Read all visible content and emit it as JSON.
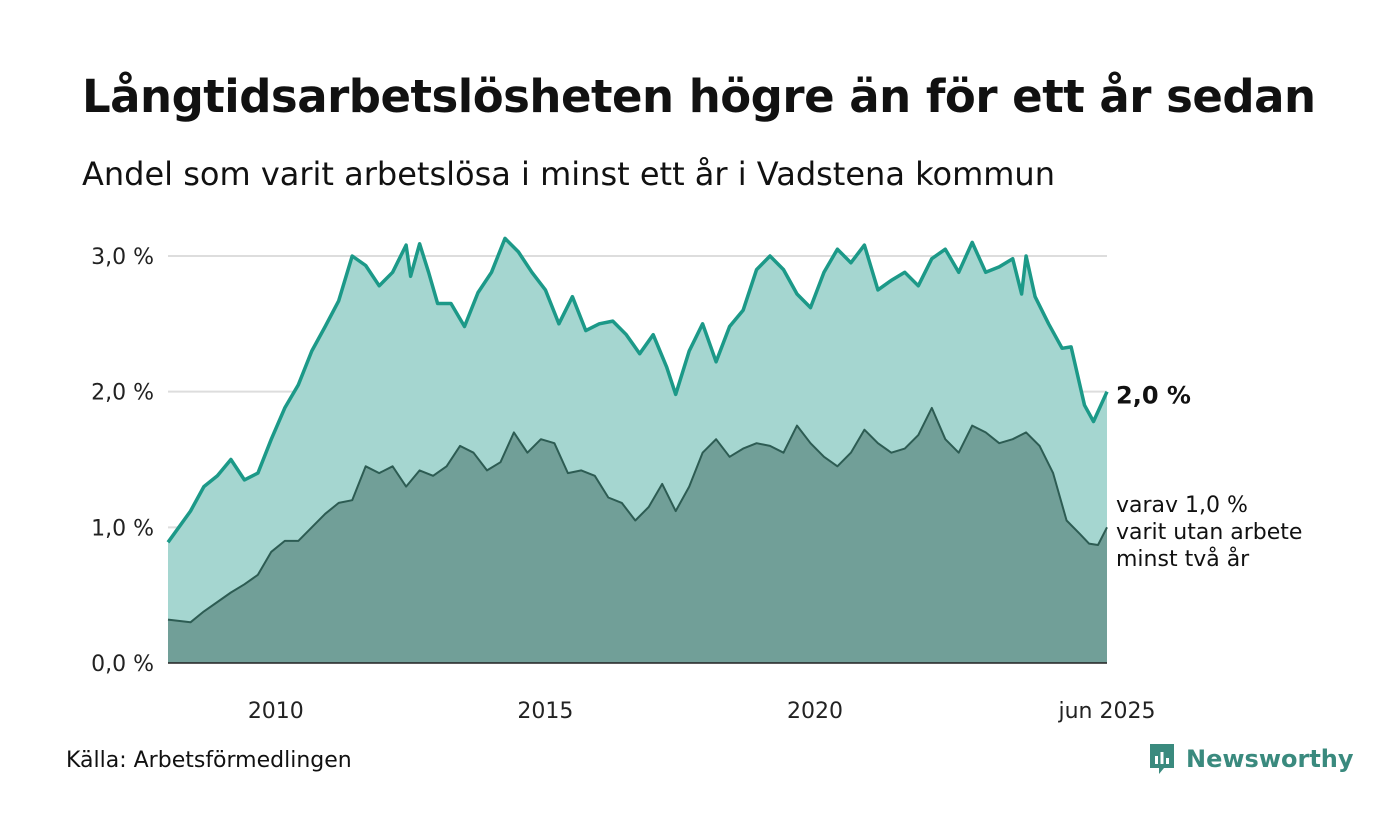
{
  "header": {
    "title": "Långtidsarbetslösheten högre än för ett år sedan",
    "subtitle": "Andel som varit arbetslösa i minst ett år i Vadstena kommun"
  },
  "footer": {
    "source": "Källa: Arbetsförmedlingen",
    "logo_text": "Newsworthy"
  },
  "colors": {
    "series_total_line": "#1c9988",
    "series_total_fill": "#a5d6d0",
    "series_long_line": "#2d5c53",
    "series_long_fill": "#719f98",
    "grid": "#dddddd",
    "logo": "#3a8a7e"
  },
  "chart_data": {
    "type": "area",
    "x_start": "2008-01",
    "x_end": "2025-06",
    "x_tick_labels": [
      "2010",
      "2015",
      "2020",
      "jun 2025"
    ],
    "y_tick_labels": [
      "0,0 %",
      "1,0 %",
      "2,0 %",
      "3,0 %"
    ],
    "ylim": [
      0,
      3.0
    ],
    "grid": true,
    "annotations": {
      "total_last": "2,0 %",
      "long_last": [
        "varav 1,0 %",
        "varit utan arbete",
        "minst två år"
      ]
    },
    "series": [
      {
        "key": "total",
        "anchors": [
          [
            "2008-01",
            0.89
          ],
          [
            "2008-06",
            1.12
          ],
          [
            "2008-09",
            1.3
          ],
          [
            "2008-12",
            1.38
          ],
          [
            "2009-03",
            1.5
          ],
          [
            "2009-06",
            1.35
          ],
          [
            "2009-09",
            1.4
          ],
          [
            "2009-12",
            1.65
          ],
          [
            "2010-03",
            1.88
          ],
          [
            "2010-06",
            2.05
          ],
          [
            "2010-09",
            2.3
          ],
          [
            "2010-12",
            2.48
          ],
          [
            "2011-03",
            2.67
          ],
          [
            "2011-06",
            3.0
          ],
          [
            "2011-09",
            2.93
          ],
          [
            "2011-12",
            2.78
          ],
          [
            "2012-03",
            2.88
          ],
          [
            "2012-06",
            3.08
          ],
          [
            "2012-07",
            2.85
          ],
          [
            "2012-09",
            3.09
          ],
          [
            "2012-11",
            2.88
          ],
          [
            "2013-01",
            2.65
          ],
          [
            "2013-04",
            2.65
          ],
          [
            "2013-07",
            2.48
          ],
          [
            "2013-10",
            2.73
          ],
          [
            "2014-01",
            2.88
          ],
          [
            "2014-04",
            3.13
          ],
          [
            "2014-07",
            3.03
          ],
          [
            "2014-10",
            2.88
          ],
          [
            "2015-01",
            2.75
          ],
          [
            "2015-04",
            2.5
          ],
          [
            "2015-07",
            2.7
          ],
          [
            "2015-10",
            2.45
          ],
          [
            "2016-01",
            2.5
          ],
          [
            "2016-04",
            2.52
          ],
          [
            "2016-07",
            2.42
          ],
          [
            "2016-10",
            2.28
          ],
          [
            "2017-01",
            2.42
          ],
          [
            "2017-04",
            2.18
          ],
          [
            "2017-06",
            1.98
          ],
          [
            "2017-09",
            2.3
          ],
          [
            "2017-12",
            2.5
          ],
          [
            "2018-03",
            2.22
          ],
          [
            "2018-06",
            2.48
          ],
          [
            "2018-09",
            2.6
          ],
          [
            "2018-12",
            2.9
          ],
          [
            "2019-03",
            3.0
          ],
          [
            "2019-06",
            2.9
          ],
          [
            "2019-09",
            2.72
          ],
          [
            "2019-12",
            2.62
          ],
          [
            "2020-03",
            2.88
          ],
          [
            "2020-06",
            3.05
          ],
          [
            "2020-09",
            2.95
          ],
          [
            "2020-12",
            3.08
          ],
          [
            "2021-03",
            2.75
          ],
          [
            "2021-06",
            2.82
          ],
          [
            "2021-09",
            2.88
          ],
          [
            "2021-12",
            2.78
          ],
          [
            "2022-03",
            2.98
          ],
          [
            "2022-06",
            3.05
          ],
          [
            "2022-09",
            2.88
          ],
          [
            "2022-12",
            3.1
          ],
          [
            "2023-03",
            2.88
          ],
          [
            "2023-06",
            2.92
          ],
          [
            "2023-09",
            2.98
          ],
          [
            "2023-11",
            2.72
          ],
          [
            "2023-12",
            3.0
          ],
          [
            "2024-02",
            2.7
          ],
          [
            "2024-05",
            2.5
          ],
          [
            "2024-08",
            2.32
          ],
          [
            "2024-10",
            2.33
          ],
          [
            "2025-01",
            1.9
          ],
          [
            "2025-03",
            1.78
          ],
          [
            "2025-06",
            2.0
          ]
        ]
      },
      {
        "key": "long",
        "anchors": [
          [
            "2008-01",
            0.32
          ],
          [
            "2008-06",
            0.3
          ],
          [
            "2008-09",
            0.38
          ],
          [
            "2008-12",
            0.45
          ],
          [
            "2009-03",
            0.52
          ],
          [
            "2009-06",
            0.58
          ],
          [
            "2009-09",
            0.65
          ],
          [
            "2009-12",
            0.82
          ],
          [
            "2010-03",
            0.9
          ],
          [
            "2010-06",
            0.9
          ],
          [
            "2010-09",
            1.0
          ],
          [
            "2010-12",
            1.1
          ],
          [
            "2011-03",
            1.18
          ],
          [
            "2011-06",
            1.2
          ],
          [
            "2011-09",
            1.45
          ],
          [
            "2011-12",
            1.4
          ],
          [
            "2012-03",
            1.45
          ],
          [
            "2012-06",
            1.3
          ],
          [
            "2012-09",
            1.42
          ],
          [
            "2012-12",
            1.38
          ],
          [
            "2013-03",
            1.45
          ],
          [
            "2013-06",
            1.6
          ],
          [
            "2013-09",
            1.55
          ],
          [
            "2013-12",
            1.42
          ],
          [
            "2014-03",
            1.48
          ],
          [
            "2014-06",
            1.7
          ],
          [
            "2014-09",
            1.55
          ],
          [
            "2014-12",
            1.65
          ],
          [
            "2015-03",
            1.62
          ],
          [
            "2015-06",
            1.4
          ],
          [
            "2015-09",
            1.42
          ],
          [
            "2015-12",
            1.38
          ],
          [
            "2016-03",
            1.22
          ],
          [
            "2016-06",
            1.18
          ],
          [
            "2016-09",
            1.05
          ],
          [
            "2016-12",
            1.15
          ],
          [
            "2017-03",
            1.32
          ],
          [
            "2017-06",
            1.12
          ],
          [
            "2017-09",
            1.3
          ],
          [
            "2017-12",
            1.55
          ],
          [
            "2018-03",
            1.65
          ],
          [
            "2018-06",
            1.52
          ],
          [
            "2018-09",
            1.58
          ],
          [
            "2018-12",
            1.62
          ],
          [
            "2019-03",
            1.6
          ],
          [
            "2019-06",
            1.55
          ],
          [
            "2019-09",
            1.75
          ],
          [
            "2019-12",
            1.62
          ],
          [
            "2020-03",
            1.52
          ],
          [
            "2020-06",
            1.45
          ],
          [
            "2020-09",
            1.55
          ],
          [
            "2020-12",
            1.72
          ],
          [
            "2021-03",
            1.62
          ],
          [
            "2021-06",
            1.55
          ],
          [
            "2021-09",
            1.58
          ],
          [
            "2021-12",
            1.68
          ],
          [
            "2022-03",
            1.88
          ],
          [
            "2022-06",
            1.65
          ],
          [
            "2022-09",
            1.55
          ],
          [
            "2022-12",
            1.75
          ],
          [
            "2023-03",
            1.7
          ],
          [
            "2023-06",
            1.62
          ],
          [
            "2023-09",
            1.65
          ],
          [
            "2023-12",
            1.7
          ],
          [
            "2024-03",
            1.6
          ],
          [
            "2024-06",
            1.4
          ],
          [
            "2024-09",
            1.05
          ],
          [
            "2024-12",
            0.95
          ],
          [
            "2025-02",
            0.88
          ],
          [
            "2025-04",
            0.87
          ],
          [
            "2025-06",
            1.0
          ]
        ]
      }
    ]
  }
}
